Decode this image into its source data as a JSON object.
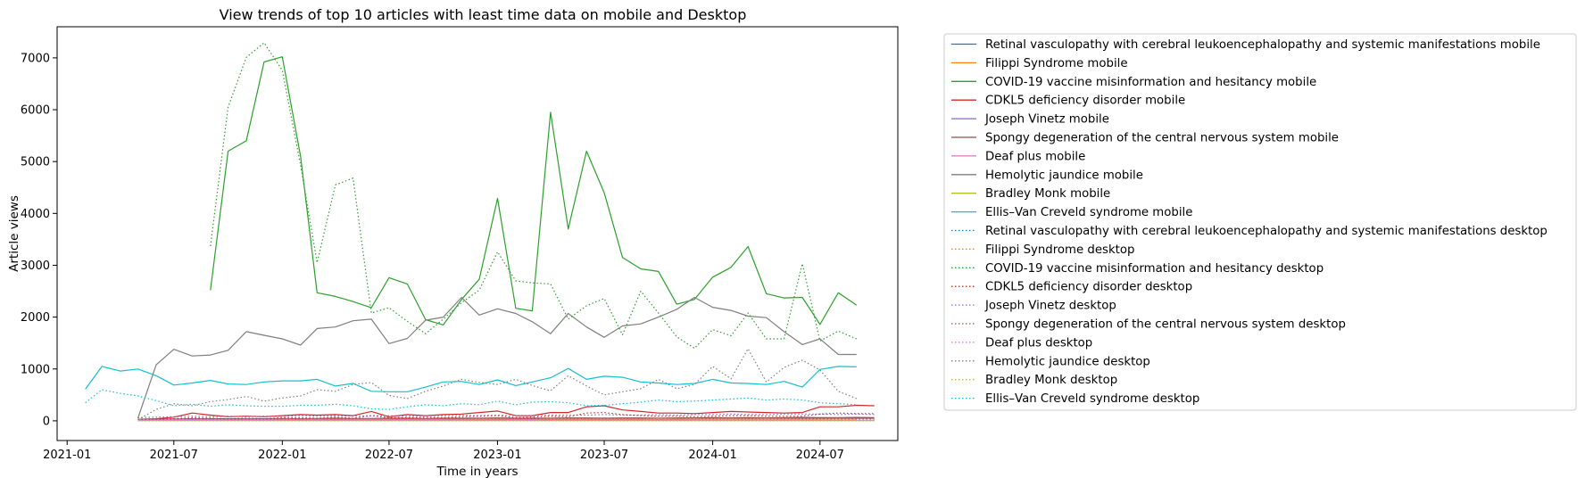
{
  "chart_data": {
    "type": "line",
    "title": "View trends of top 10 articles with least time data on mobile and Desktop",
    "xlabel": "Time in years",
    "ylabel": "Article views",
    "xlim": [
      "2020-12-15",
      "2024-11-10"
    ],
    "ylim": [
      -380,
      7600
    ],
    "x_ticks": [
      "2021-01",
      "2021-07",
      "2022-01",
      "2022-07",
      "2023-01",
      "2023-07",
      "2024-01",
      "2024-07"
    ],
    "y_ticks": [
      0,
      1000,
      2000,
      3000,
      4000,
      5000,
      6000,
      7000
    ],
    "grid": false,
    "legend_position": "outside-right",
    "colors": [
      "#1f77b4",
      "#ff7f0e",
      "#2ca02c",
      "#d62728",
      "#9467bd",
      "#8c564b",
      "#e377c2",
      "#7f7f7f",
      "#bcbd22",
      "#17becf"
    ],
    "series": [
      {
        "name": "Retinal vasculopathy with cerebral leukoencephalopathy and systemic manifestations mobile",
        "color": "#1f77b4",
        "style": "solid",
        "start": "2021-05",
        "values": [
          10,
          10,
          10,
          10,
          10,
          12,
          10,
          10,
          10,
          10,
          10,
          10,
          10,
          10,
          10,
          10,
          10,
          10,
          10,
          10,
          10,
          10,
          10,
          10,
          10,
          10,
          10,
          10,
          10,
          10,
          10,
          10,
          10,
          10,
          10,
          10,
          10,
          10,
          10,
          10,
          10
        ]
      },
      {
        "name": "Filippi Syndrome mobile",
        "color": "#ff7f0e",
        "style": "solid",
        "start": "2021-05",
        "values": [
          15,
          15,
          20,
          15,
          15,
          15,
          15,
          15,
          15,
          15,
          15,
          20,
          15,
          15,
          15,
          15,
          15,
          15,
          15,
          15,
          15,
          15,
          15,
          15,
          15,
          15,
          15,
          15,
          15,
          15,
          15,
          15,
          15,
          15,
          15,
          15,
          15,
          15,
          15,
          15,
          15
        ]
      },
      {
        "name": "COVID-19 vaccine misinformation and hesitancy mobile",
        "color": "#2ca02c",
        "style": "solid",
        "start": "2021-09",
        "values": [
          2520,
          5200,
          5400,
          6920,
          7020,
          5100,
          2470,
          2400,
          2300,
          2180,
          2760,
          2640,
          1950,
          1850,
          2340,
          2730,
          4290,
          2170,
          2120,
          5950,
          3700,
          5200,
          4400,
          3150,
          2930,
          2880,
          2250,
          2340,
          2770,
          2960,
          3360,
          2450,
          2370,
          2380,
          1860,
          2470,
          2230
        ]
      },
      {
        "name": "CDKL5 deficiency disorder mobile",
        "color": "#d62728",
        "style": "solid",
        "start": "2021-05",
        "values": [
          30,
          40,
          70,
          150,
          110,
          80,
          90,
          80,
          100,
          120,
          110,
          120,
          100,
          180,
          80,
          120,
          100,
          120,
          130,
          160,
          190,
          100,
          100,
          160,
          160,
          270,
          290,
          210,
          180,
          150,
          150,
          140,
          160,
          180,
          170,
          160,
          150,
          160,
          270,
          270,
          300,
          290
        ]
      },
      {
        "name": "Joseph Vinetz mobile",
        "color": "#9467bd",
        "style": "solid",
        "start": "2021-05",
        "values": [
          20,
          25,
          30,
          40,
          30,
          35,
          30,
          40,
          35,
          40,
          30,
          35,
          40,
          40,
          35,
          40,
          30,
          40,
          45,
          40,
          40,
          35,
          40,
          45,
          40,
          45,
          50,
          40,
          45,
          40,
          45,
          40,
          45,
          50,
          45,
          45,
          45,
          50,
          50,
          55,
          60,
          55
        ]
      },
      {
        "name": "Spongy degeneration of the central nervous system mobile",
        "color": "#8c564b",
        "style": "solid",
        "start": "2021-05",
        "values": [
          30,
          30,
          35,
          35,
          40,
          40,
          40,
          40,
          45,
          40,
          45,
          50,
          45,
          45,
          50,
          50,
          45,
          50,
          50,
          50,
          55,
          50,
          50,
          50,
          55,
          55,
          50,
          55,
          55,
          50,
          55,
          55,
          60,
          55,
          60,
          55,
          60,
          65,
          60,
          60,
          65,
          60
        ]
      },
      {
        "name": "Deaf plus mobile",
        "color": "#e377c2",
        "style": "solid",
        "start": "2021-05",
        "values": [
          20,
          20,
          25,
          25,
          25,
          25,
          30,
          25,
          30,
          30,
          30,
          30,
          30,
          30,
          30,
          30,
          30,
          30,
          30,
          35,
          35,
          30,
          30,
          35,
          35,
          35,
          35,
          35,
          35,
          40,
          35,
          40,
          40,
          40,
          40,
          40,
          40,
          40,
          40,
          45,
          40,
          40
        ]
      },
      {
        "name": "Hemolytic jaundice mobile",
        "color": "#7f7f7f",
        "style": "solid",
        "start": "2021-05",
        "values": [
          50,
          1080,
          1380,
          1250,
          1270,
          1360,
          1720,
          1650,
          1580,
          1460,
          1780,
          1810,
          1930,
          1960,
          1490,
          1590,
          1940,
          2000,
          2380,
          2040,
          2160,
          2070,
          1910,
          1680,
          2070,
          1810,
          1610,
          1830,
          1870,
          2000,
          2150,
          2380,
          2190,
          2130,
          2020,
          1990,
          1720,
          1470,
          1580,
          1280,
          1280
        ]
      },
      {
        "name": "Bradley Monk mobile",
        "color": "#bcbd22",
        "style": "solid",
        "start": "2021-05",
        "values": [
          5,
          5,
          5,
          5,
          5,
          5,
          5,
          5,
          5,
          5,
          5,
          5,
          5,
          5,
          5,
          5,
          5,
          5,
          5,
          5,
          5,
          5,
          5,
          5,
          5,
          5,
          5,
          5,
          5,
          5,
          5,
          5,
          5,
          5,
          5,
          5,
          5,
          5,
          5,
          5,
          5,
          5
        ]
      },
      {
        "name": "Ellis–Van Creveld syndrome mobile",
        "color": "#17becf",
        "style": "solid",
        "start": "2021-02",
        "values": [
          610,
          1050,
          960,
          1000,
          870,
          690,
          730,
          780,
          710,
          700,
          750,
          770,
          770,
          800,
          670,
          720,
          570,
          560,
          560,
          650,
          750,
          760,
          700,
          790,
          680,
          750,
          830,
          1010,
          800,
          860,
          840,
          750,
          730,
          700,
          720,
          800,
          730,
          720,
          700,
          760,
          650,
          990,
          1050,
          1040
        ]
      },
      {
        "name": "Retinal vasculopathy with cerebral leukoencephalopathy and systemic manifestations desktop",
        "color": "#1f77b4",
        "style": "dotted",
        "start": "2021-05",
        "values": [
          5,
          5,
          5,
          5,
          5,
          5,
          5,
          5,
          5,
          5,
          5,
          5,
          5,
          5,
          5,
          5,
          5,
          5,
          5,
          5,
          5,
          5,
          5,
          5,
          5,
          5,
          5,
          5,
          5,
          5,
          5,
          5,
          5,
          5,
          5,
          5,
          5,
          5,
          5,
          5,
          5,
          5
        ]
      },
      {
        "name": "Filippi Syndrome desktop",
        "color": "#ff7f0e",
        "style": "dotted",
        "start": "2021-05",
        "values": [
          10,
          10,
          15,
          10,
          10,
          10,
          15,
          10,
          10,
          10,
          10,
          10,
          15,
          10,
          10,
          10,
          10,
          10,
          10,
          10,
          10,
          10,
          10,
          10,
          10,
          10,
          10,
          10,
          10,
          10,
          10,
          10,
          10,
          10,
          10,
          10,
          10,
          10,
          10,
          10,
          10,
          10
        ]
      },
      {
        "name": "COVID-19 vaccine misinformation and hesitancy desktop",
        "color": "#2ca02c",
        "style": "dotted",
        "start": "2021-09",
        "values": [
          3370,
          6050,
          7010,
          7290,
          6760,
          4930,
          3050,
          4550,
          4680,
          2080,
          2180,
          1920,
          1680,
          1960,
          2280,
          2520,
          3260,
          2700,
          2660,
          2640,
          1960,
          2220,
          2360,
          1660,
          2500,
          2080,
          1620,
          1400,
          1760,
          1640,
          2080,
          1580,
          1580,
          3030,
          1540,
          1730,
          1580
        ]
      },
      {
        "name": "CDKL5 deficiency disorder desktop",
        "color": "#d62728",
        "style": "dotted",
        "start": "2021-05",
        "values": [
          20,
          30,
          40,
          60,
          50,
          40,
          50,
          40,
          60,
          60,
          50,
          70,
          50,
          100,
          60,
          60,
          70,
          60,
          80,
          90,
          100,
          60,
          70,
          90,
          80,
          150,
          160,
          120,
          100,
          90,
          90,
          80,
          90,
          100,
          100,
          90,
          90,
          90,
          130,
          150,
          140,
          140
        ]
      },
      {
        "name": "Joseph Vinetz desktop",
        "color": "#9467bd",
        "style": "dotted",
        "start": "2021-05",
        "values": [
          60,
          70,
          80,
          90,
          80,
          90,
          80,
          90,
          90,
          100,
          90,
          100,
          90,
          100,
          100,
          90,
          100,
          100,
          110,
          100,
          110,
          100,
          100,
          110,
          110,
          110,
          120,
          110,
          110,
          120,
          110,
          120,
          120,
          130,
          120,
          120,
          130,
          130,
          130,
          120,
          130,
          120
        ]
      },
      {
        "name": "Spongy degeneration of the central nervous system desktop",
        "color": "#8c564b",
        "style": "dotted",
        "start": "2021-05",
        "values": [
          15,
          15,
          20,
          20,
          20,
          20,
          25,
          20,
          25,
          25,
          25,
          25,
          25,
          25,
          25,
          25,
          25,
          25,
          30,
          30,
          30,
          25,
          30,
          30,
          30,
          30,
          30,
          30,
          30,
          30,
          30,
          30,
          35,
          30,
          35,
          30,
          35,
          35,
          35,
          35,
          35,
          35
        ]
      },
      {
        "name": "Deaf plus desktop",
        "color": "#e377c2",
        "style": "dotted",
        "start": "2021-05",
        "values": [
          10,
          10,
          15,
          15,
          15,
          15,
          15,
          15,
          15,
          15,
          20,
          15,
          20,
          20,
          20,
          20,
          20,
          20,
          20,
          20,
          20,
          20,
          20,
          20,
          20,
          20,
          20,
          25,
          20,
          25,
          25,
          25,
          25,
          25,
          25,
          25,
          25,
          25,
          25,
          25,
          25,
          25
        ]
      },
      {
        "name": "Hemolytic jaundice desktop",
        "color": "#7f7f7f",
        "style": "dotted",
        "start": "2021-05",
        "values": [
          20,
          220,
          330,
          290,
          370,
          410,
          470,
          380,
          440,
          480,
          600,
          570,
          700,
          740,
          490,
          430,
          570,
          670,
          800,
          740,
          700,
          800,
          680,
          580,
          870,
          670,
          500,
          560,
          620,
          800,
          620,
          700,
          1050,
          810,
          1390,
          750,
          1030,
          1170,
          980,
          570,
          430
        ]
      },
      {
        "name": "Bradley Monk desktop",
        "color": "#bcbd22",
        "style": "dotted",
        "start": "2021-05",
        "values": [
          5,
          5,
          5,
          5,
          5,
          5,
          5,
          5,
          5,
          5,
          5,
          5,
          5,
          5,
          5,
          5,
          5,
          5,
          5,
          5,
          5,
          5,
          5,
          5,
          5,
          5,
          5,
          5,
          5,
          5,
          5,
          5,
          5,
          5,
          5,
          5,
          5,
          5,
          5,
          5,
          5,
          5
        ]
      },
      {
        "name": "Ellis–Van Creveld syndrome desktop",
        "color": "#17becf",
        "style": "dotted",
        "start": "2021-02",
        "values": [
          350,
          600,
          530,
          480,
          390,
          290,
          320,
          280,
          310,
          290,
          280,
          280,
          300,
          300,
          320,
          290,
          230,
          220,
          270,
          310,
          290,
          330,
          310,
          380,
          310,
          360,
          370,
          350,
          290,
          300,
          330,
          360,
          400,
          370,
          380,
          400,
          420,
          440,
          400,
          420,
          400,
          350,
          330,
          310
        ]
      }
    ]
  }
}
